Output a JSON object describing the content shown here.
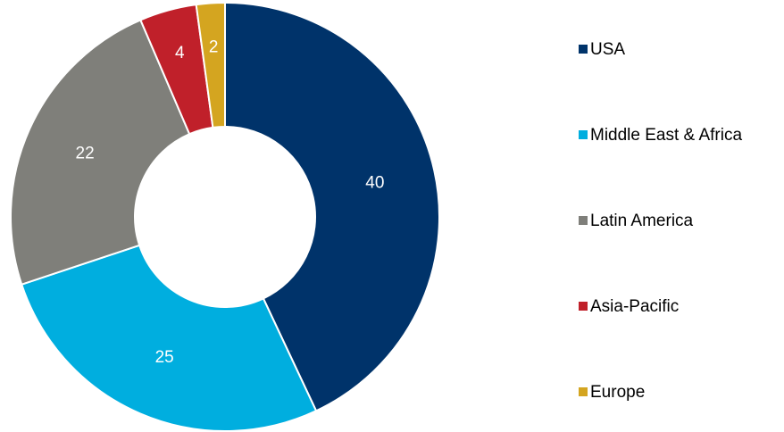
{
  "chart_data": {
    "type": "donut",
    "categories": [
      "USA",
      "Middle East & Africa",
      "Latin America",
      "Asia-Pacific",
      "Europe"
    ],
    "values": [
      40,
      25,
      22,
      4,
      2
    ],
    "colors": [
      "#00336a",
      "#00aedf",
      "#7f7f7a",
      "#c0202a",
      "#d4a520"
    ],
    "legend": "right"
  }
}
